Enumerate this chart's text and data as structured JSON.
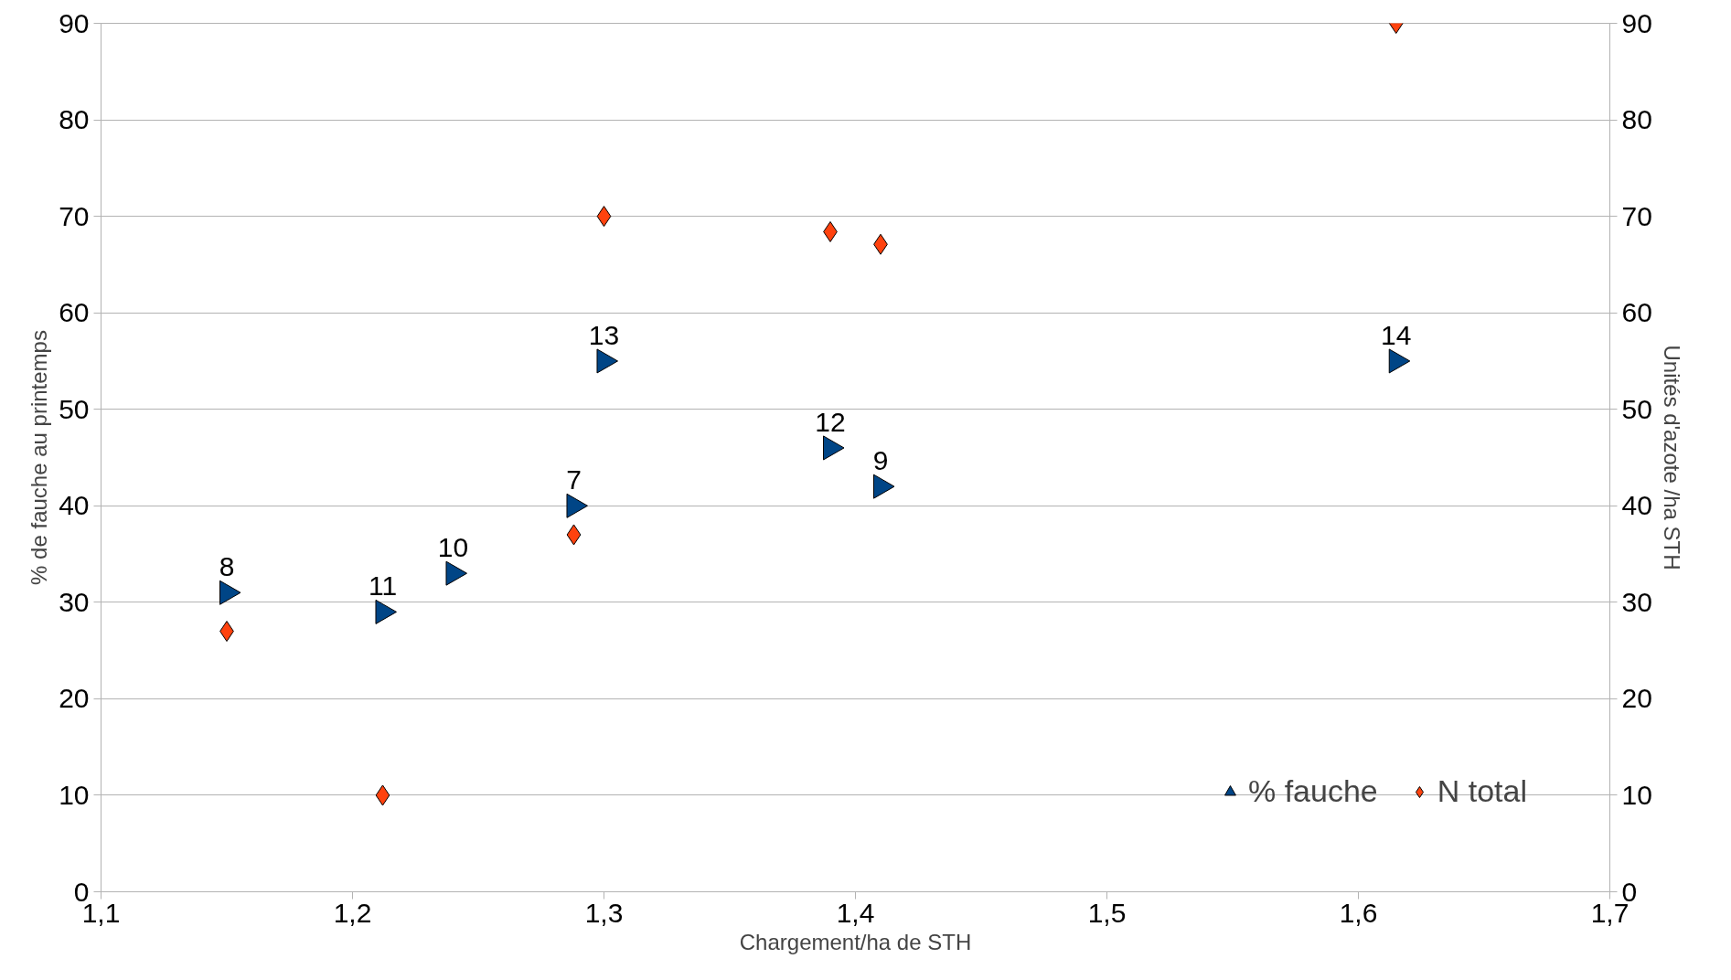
{
  "chart_data": {
    "type": "scatter",
    "xlabel": "Chargement/ha de STH",
    "ylabel": "% de fauche au printemps",
    "y2label": "Unités d'azote /ha STH",
    "xlim": [
      1.1,
      1.7
    ],
    "xticks": [
      {
        "value": 1.1,
        "label": "1,1"
      },
      {
        "value": 1.2,
        "label": "1,2"
      },
      {
        "value": 1.3,
        "label": "1,3"
      },
      {
        "value": 1.4,
        "label": "1,4"
      },
      {
        "value": 1.5,
        "label": "1,5"
      },
      {
        "value": 1.6,
        "label": "1,6"
      },
      {
        "value": 1.7,
        "label": "1,7"
      }
    ],
    "ylim": [
      0,
      90
    ],
    "yticks": [
      0,
      10,
      20,
      30,
      40,
      50,
      60,
      70,
      80,
      90
    ],
    "y2lim": [
      0,
      90
    ],
    "y2ticks": [
      0,
      10,
      20,
      30,
      40,
      50,
      60,
      70,
      80,
      90
    ],
    "grid": "y",
    "legend": "bottom right",
    "series": [
      {
        "name": "% fauche",
        "color": "#004586",
        "marker": "triangle",
        "x": [
          1.15,
          1.212,
          1.24,
          1.288,
          1.3,
          1.39,
          1.41,
          1.615
        ],
        "values": [
          31,
          29,
          33,
          40,
          55,
          46,
          42,
          55
        ]
      },
      {
        "name": "N total",
        "color": "#ff420e",
        "marker": "diamond",
        "axis": "y2",
        "x": [
          1.15,
          1.212,
          1.288,
          1.3,
          1.39,
          1.41,
          1.615
        ],
        "values": [
          27,
          10,
          37,
          70,
          68.4,
          67.1,
          90
        ]
      }
    ],
    "annotations": [
      {
        "text": "8",
        "x": 1.15,
        "y": 31
      },
      {
        "text": "11",
        "x": 1.212,
        "y": 29
      },
      {
        "text": "10",
        "x": 1.24,
        "y": 33
      },
      {
        "text": "7",
        "x": 1.288,
        "y": 40
      },
      {
        "text": "13",
        "x": 1.3,
        "y": 55
      },
      {
        "text": "12",
        "x": 1.39,
        "y": 46
      },
      {
        "text": "9",
        "x": 1.41,
        "y": 42
      },
      {
        "text": "14",
        "x": 1.615,
        "y": 55
      }
    ]
  }
}
